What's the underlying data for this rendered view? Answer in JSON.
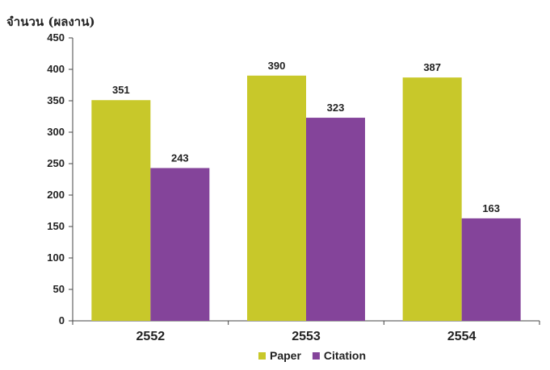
{
  "chart_data": {
    "type": "bar",
    "title": "",
    "ylabel": "จำนวน (ผลงาน)",
    "xlabel": "",
    "categories": [
      "2552",
      "2553",
      "2554"
    ],
    "series": [
      {
        "name": "Paper",
        "values": [
          351,
          390,
          387
        ],
        "color": "#c8c82a"
      },
      {
        "name": "Citation",
        "values": [
          243,
          323,
          163
        ],
        "color": "#84449a"
      }
    ],
    "data_labels": [
      [
        "351",
        "390",
        "387"
      ],
      [
        "243",
        "323",
        "163"
      ]
    ],
    "yticks": [
      0,
      50,
      100,
      150,
      200,
      250,
      300,
      350,
      400,
      450
    ],
    "ylim": [
      0,
      450
    ],
    "grid": false,
    "legend_position": "bottom"
  }
}
